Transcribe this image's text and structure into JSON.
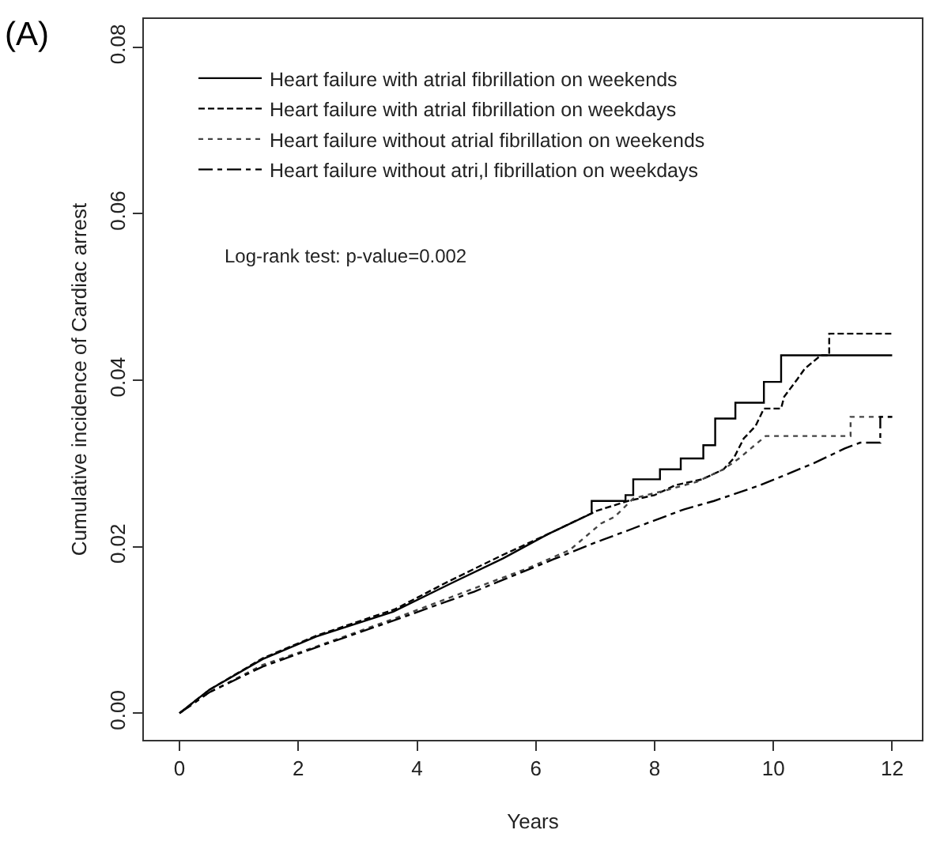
{
  "chart_data": {
    "type": "line",
    "title": "(A)",
    "xlabel": "Years",
    "ylabel": "Cumulative incidence of Cardiac arrest",
    "annotations": [
      "Log-rank test: p-value=0.002"
    ],
    "xlim": [
      -0.6,
      12.5
    ],
    "xticks": [
      0,
      2,
      4,
      6,
      8,
      10,
      12
    ],
    "ylim": [
      -0.0032,
      0.0834
    ],
    "yticks": [
      {
        "value": 0,
        "label": "0.00"
      },
      {
        "value": 0.02,
        "label": "0.02"
      },
      {
        "value": 0.04,
        "label": "0.04"
      },
      {
        "value": 0.06,
        "label": "0.06"
      },
      {
        "value": 0.08,
        "label": "0.08"
      }
    ],
    "grid": false,
    "legend": "top left",
    "marker": "none",
    "series": [
      {
        "name": "Heart failure with atrial fibrillation on weekends",
        "color": "#000000",
        "line_style": "solid",
        "x": [
          0,
          0.5,
          1.4,
          2.3,
          3.6,
          4.6,
          5.45,
          6.2,
          6.94,
          6.94,
          7.51,
          7.51,
          7.64,
          7.64,
          8.09,
          8.09,
          8.44,
          8.44,
          8.82,
          8.82,
          9.02,
          9.02,
          9.36,
          9.36,
          9.84,
          9.84,
          10.13,
          10.13,
          12
        ],
        "values": [
          0,
          0.0028,
          0.0065,
          0.0092,
          0.0122,
          0.0157,
          0.0186,
          0.0215,
          0.024,
          0.0255,
          0.0255,
          0.0262,
          0.0262,
          0.0281,
          0.0281,
          0.0293,
          0.0293,
          0.0306,
          0.0306,
          0.0322,
          0.0322,
          0.0354,
          0.0354,
          0.0373,
          0.0373,
          0.0398,
          0.0398,
          0.043,
          0.043
        ]
      },
      {
        "name": "Heart failure with atrial fibrillation on weekdays",
        "color": "#000000",
        "line_style": "dashed",
        "x": [
          0,
          0.5,
          1.4,
          2.3,
          3.63,
          4.52,
          5.41,
          6.2,
          7.02,
          7.55,
          8.0,
          8.35,
          8.8,
          9.16,
          9.33,
          9.5,
          9.7,
          9.84,
          10.13,
          10.18,
          10.4,
          10.53,
          10.8,
          10.94,
          10.94,
          12
        ],
        "values": [
          0,
          0.0028,
          0.0066,
          0.0093,
          0.0125,
          0.0158,
          0.0189,
          0.0215,
          0.0243,
          0.0255,
          0.0262,
          0.0274,
          0.0281,
          0.0293,
          0.0306,
          0.033,
          0.0345,
          0.0366,
          0.0366,
          0.038,
          0.0401,
          0.0414,
          0.043,
          0.043,
          0.0456,
          0.0456
        ]
      },
      {
        "name": "Heart failure without atrial fibrillation on weekends",
        "color": "#444444",
        "line_style": "dotted",
        "x": [
          0,
          0.5,
          1.4,
          2.3,
          3.63,
          4.96,
          5.86,
          6.57,
          7.1,
          7.33,
          7.64,
          8.2,
          8.71,
          9.16,
          9.42,
          9.87,
          11.3,
          11.3,
          12
        ],
        "values": [
          0,
          0.0025,
          0.0058,
          0.008,
          0.0114,
          0.015,
          0.0174,
          0.0196,
          0.0228,
          0.0236,
          0.0258,
          0.0268,
          0.0278,
          0.0293,
          0.0306,
          0.0333,
          0.0333,
          0.0356,
          0.0356
        ]
      },
      {
        "name": "Heart failure without atri,l fibrillation on weekdays",
        "color": "#000000",
        "line_style": "dashdot",
        "x": [
          0,
          0.5,
          1.4,
          2.3,
          3.63,
          4.96,
          6.3,
          7.0,
          7.64,
          8.5,
          9.0,
          9.78,
          10.67,
          11.2,
          11.46,
          11.8,
          11.8,
          12
        ],
        "values": [
          0,
          0.0025,
          0.0056,
          0.0079,
          0.0112,
          0.0146,
          0.0185,
          0.0205,
          0.0222,
          0.0245,
          0.0255,
          0.0274,
          0.03,
          0.0318,
          0.0325,
          0.0325,
          0.0356,
          0.0356
        ]
      }
    ]
  }
}
